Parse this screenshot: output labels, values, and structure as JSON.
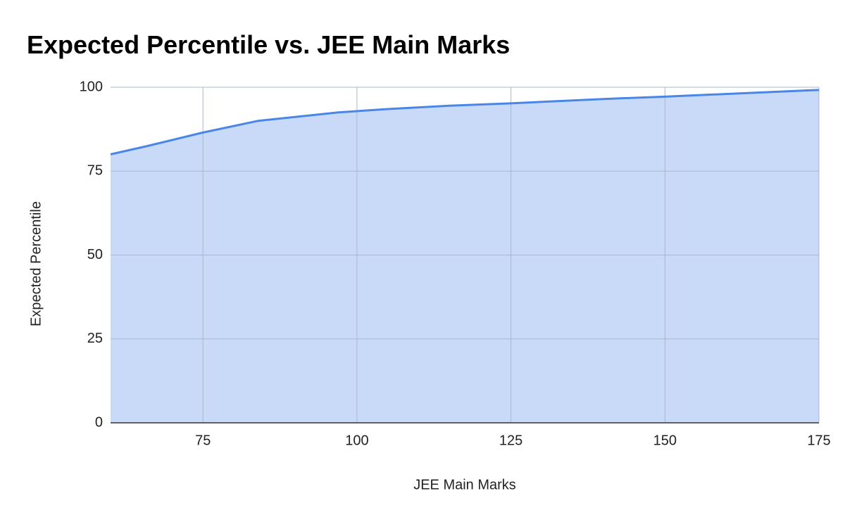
{
  "chart_data": {
    "type": "area",
    "title": "Expected Percentile vs. JEE Main Marks",
    "x_label": "JEE Main Marks",
    "y_label": "Expected Percentile",
    "x": [
      60,
      66,
      75,
      84,
      97,
      105,
      115,
      125,
      140,
      150,
      175
    ],
    "values": [
      80,
      82.5,
      86.5,
      90,
      92.5,
      93.5,
      94.5,
      95.2,
      96.5,
      97.2,
      99.2
    ],
    "color": "#4a86e8",
    "fill_color": "#c9daf8",
    "xlim": [
      60,
      175
    ],
    "xticks": [
      75,
      100,
      125,
      150,
      175
    ],
    "ylim": [
      0,
      100
    ],
    "yticks": [
      0,
      25,
      50,
      75,
      100
    ],
    "grid": true
  }
}
